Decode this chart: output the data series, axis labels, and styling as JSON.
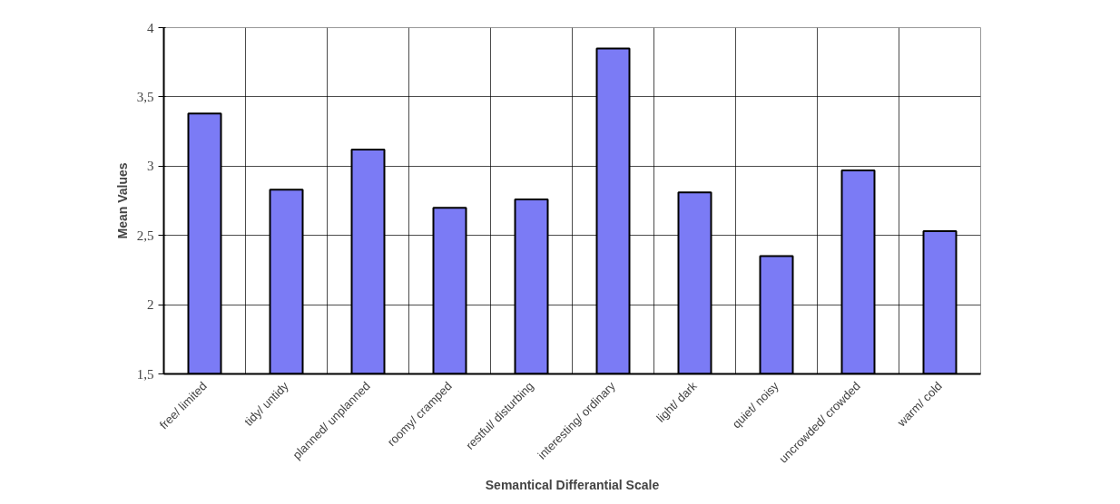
{
  "chart_data": {
    "type": "bar",
    "xlabel": "Semantical Differantial Scale",
    "ylabel": "Mean Values",
    "categories": [
      "free/ limited",
      "tidy/ untidy",
      "planned/ unplanned",
      "roomy/ cramped",
      "restful/ disturbing",
      "interesting/ ordinary",
      "light/ dark",
      "quiet/ noisy",
      "uncrowded/ crowded",
      "warm/ cold"
    ],
    "values": [
      3.38,
      2.83,
      3.12,
      2.7,
      2.76,
      3.85,
      2.81,
      2.35,
      2.97,
      2.53
    ],
    "color": "#7b7bf5",
    "ylim": [
      1.5,
      4
    ],
    "yticks": [
      {
        "value": 1.5,
        "label": "1,5"
      },
      2,
      {
        "value": 2.5,
        "label": "2,5"
      },
      3,
      {
        "value": 3.5,
        "label": "3,5"
      },
      4
    ],
    "grid": true
  }
}
